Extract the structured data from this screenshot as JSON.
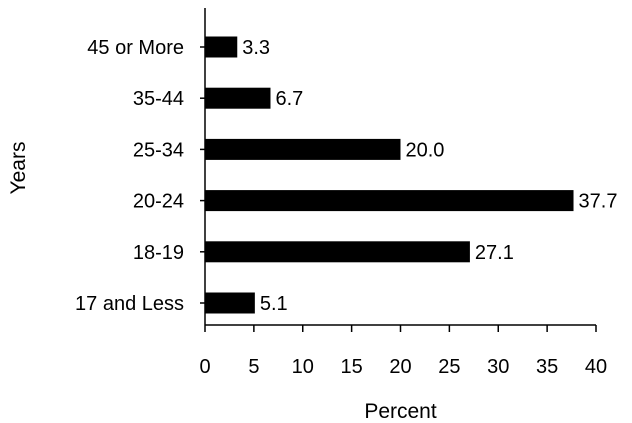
{
  "chart_data": {
    "type": "bar",
    "orientation": "horizontal",
    "categories": [
      "17 and Less",
      "18-19",
      "20-24",
      "25-34",
      "35-44",
      "45 or More"
    ],
    "values": [
      5.1,
      27.1,
      37.7,
      20.0,
      6.7,
      3.3
    ],
    "value_labels": [
      "5.1",
      "27.1",
      "37.7",
      "20.0",
      "6.7",
      "3.3"
    ],
    "xlabel": "Percent",
    "ylabel": "Years",
    "xlim": [
      0,
      40
    ],
    "xticks": [
      0,
      5,
      10,
      15,
      20,
      25,
      30,
      35,
      40
    ],
    "grid": false,
    "bar_color": "#000000"
  }
}
